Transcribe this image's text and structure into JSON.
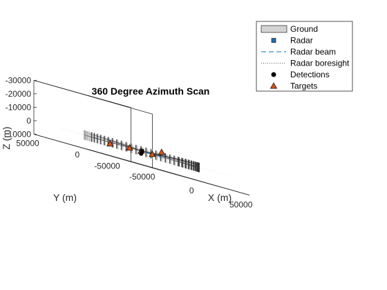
{
  "chart_data": {
    "type": "scatter",
    "title": "360 Degree Azimuth Scan",
    "xlabel": "X (m)",
    "ylabel": "Y (m)",
    "zlabel": "Z (m)",
    "x_ticks": [
      "-50000",
      "0",
      "50000"
    ],
    "y_ticks": [
      "50000",
      "0",
      "-50000"
    ],
    "z_ticks": [
      "-30000",
      "-20000",
      "-10000",
      "0",
      "10000"
    ],
    "xlim": [
      -60000,
      60000
    ],
    "ylim": [
      -60000,
      60000
    ],
    "zlim": [
      -30000,
      10000
    ],
    "grid": false,
    "legend_position": "top-right",
    "legend": [
      {
        "label": "Ground",
        "marker": "patch"
      },
      {
        "label": "Radar",
        "marker": "square"
      },
      {
        "label": "Radar beam",
        "marker": "dashed-line"
      },
      {
        "label": "Radar boresight",
        "marker": "dotted-line"
      },
      {
        "label": "Detections",
        "marker": "dot"
      },
      {
        "label": "Targets",
        "marker": "triangle"
      }
    ],
    "radar": {
      "x": 0,
      "y": 0,
      "z": 0
    },
    "scan_range": 45000,
    "targets": [
      {
        "x": -32000,
        "y": 0,
        "z": 1000
      },
      {
        "x": 30000,
        "y": 12000,
        "z": -3500
      },
      {
        "x": 0,
        "y": 15000,
        "z": 0
      },
      {
        "x": -12000,
        "y": -14000,
        "z": 0
      },
      {
        "x": 14000,
        "y": 4000,
        "z": 0
      }
    ],
    "detections": [
      {
        "x": -12000,
        "y": -14000,
        "z": 2000
      },
      {
        "x": 2000,
        "y": 2000,
        "z": 0
      }
    ],
    "colors": {
      "ground": "#d3d3d3",
      "radar": "#1f6fb4",
      "beam": "#0072bd",
      "target_fill": "#d95319",
      "detection": "#000000",
      "axes": "#262626"
    }
  }
}
